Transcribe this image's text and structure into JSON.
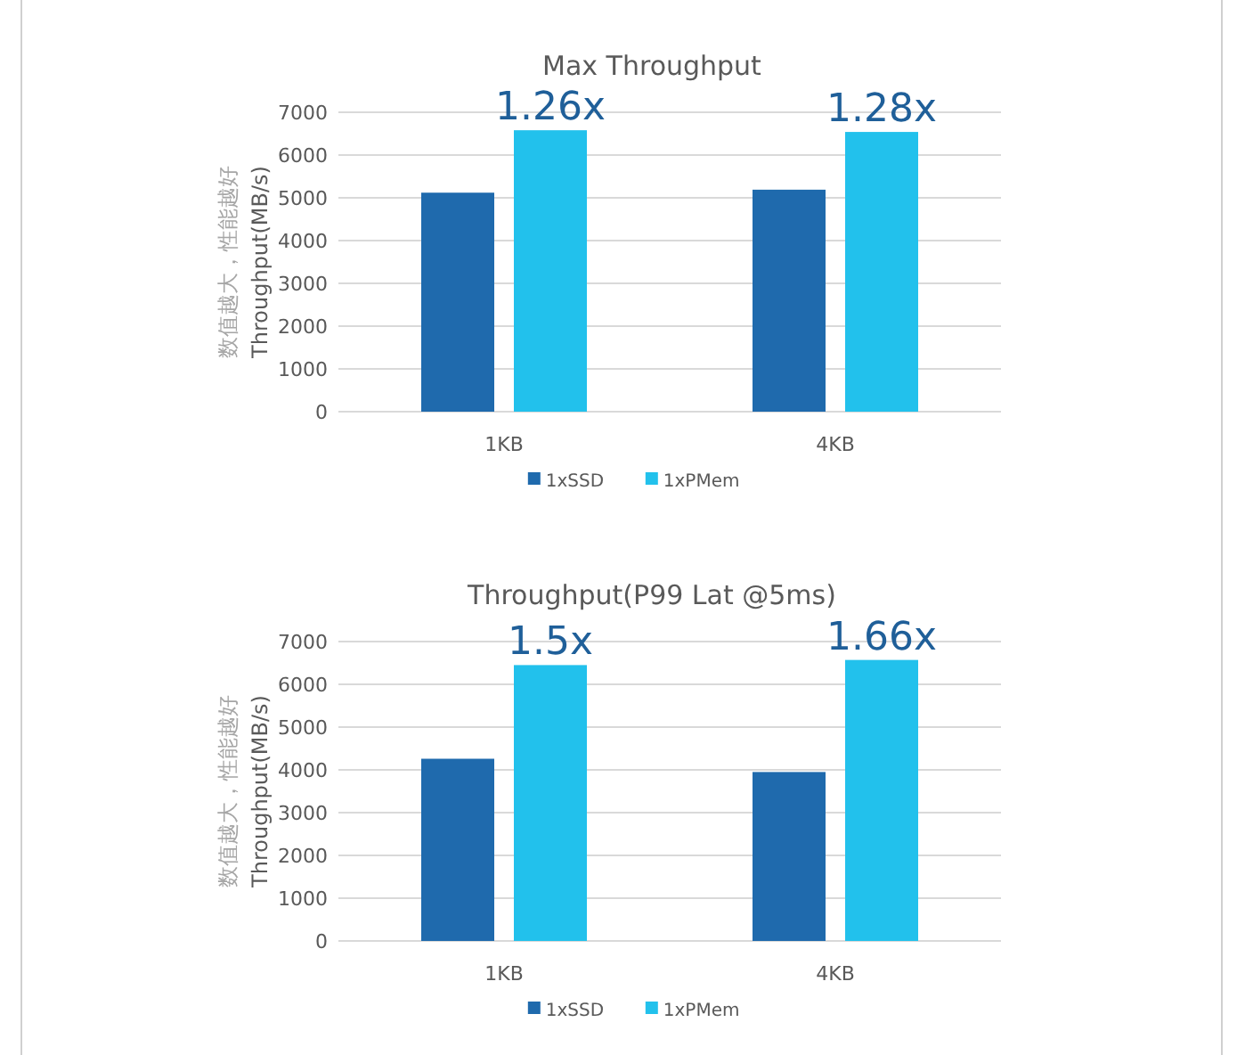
{
  "chart_data": [
    {
      "type": "bar",
      "title": "Max Throughput",
      "ylabel": "Throughput(MB/s)",
      "categories": [
        "1KB",
        "4KB"
      ],
      "series": [
        {
          "name": "1xSSD",
          "color": "#1f6aad",
          "values": [
            5120,
            5190
          ]
        },
        {
          "name": "1xPMem",
          "color": "#22c1ec",
          "values": [
            6580,
            6540
          ]
        }
      ],
      "ylim": [
        0,
        7000
      ],
      "yticks": [
        0,
        1000,
        2000,
        3000,
        4000,
        5000,
        6000,
        7000
      ],
      "grid": "y",
      "legend": "bottom",
      "annotations": [
        "数值越大，性能越好",
        "1.26x",
        "1.28x"
      ]
    },
    {
      "type": "bar",
      "title": "Throughput(P99 Lat @5ms)",
      "ylabel": "Throughput(MB/s)",
      "categories": [
        "1KB",
        "4KB"
      ],
      "series": [
        {
          "name": "1xSSD",
          "color": "#1f6aad",
          "values": [
            4260,
            3950
          ]
        },
        {
          "name": "1xPMem",
          "color": "#22c1ec",
          "values": [
            6450,
            6570
          ]
        }
      ],
      "ylim": [
        0,
        7000
      ],
      "yticks": [
        0,
        1000,
        2000,
        3000,
        4000,
        5000,
        6000,
        7000
      ],
      "grid": "y",
      "legend": "bottom",
      "annotations": [
        "数值越大，性能越好",
        "1.5x",
        "1.66x"
      ]
    }
  ]
}
